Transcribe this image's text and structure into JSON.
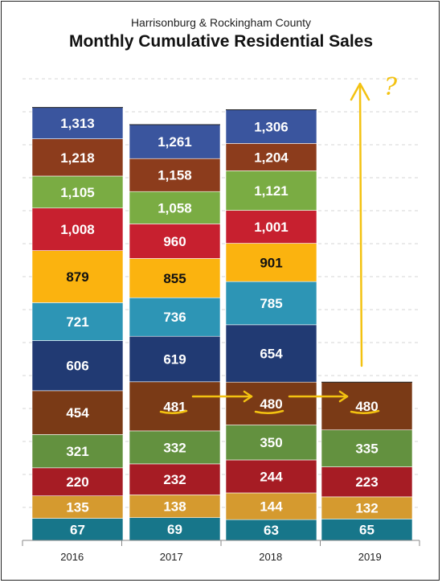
{
  "chart_data": {
    "type": "bar",
    "stacked": true,
    "subtitle": "Harrisonburg & Rockingham County",
    "title": "Monthly Cumulative Residential Sales",
    "categories": [
      "2016",
      "2017",
      "2018",
      "2019"
    ],
    "values": [
      [
        67,
        135,
        220,
        321,
        454,
        606,
        721,
        879,
        1008,
        1105,
        1218,
        1313
      ],
      [
        69,
        138,
        232,
        332,
        481,
        619,
        736,
        855,
        960,
        1058,
        1158,
        1261
      ],
      [
        63,
        144,
        244,
        350,
        480,
        654,
        785,
        901,
        1001,
        1121,
        1204,
        1306
      ],
      [
        65,
        132,
        223,
        335,
        480
      ]
    ],
    "labels": [
      [
        "67",
        "135",
        "220",
        "321",
        "454",
        "606",
        "721",
        "879",
        "1,008",
        "1,105",
        "1,218",
        "1,313"
      ],
      [
        "69",
        "138",
        "232",
        "332",
        "481",
        "619",
        "736",
        "855",
        "960",
        "1,058",
        "1,158",
        "1,261"
      ],
      [
        "63",
        "144",
        "244",
        "350",
        "480",
        "654",
        "785",
        "901",
        "1,001",
        "1,121",
        "1,204",
        "1,306"
      ],
      [
        "65",
        "132",
        "223",
        "335",
        "480"
      ]
    ],
    "ylim": [
      0,
      1400
    ],
    "grid": true,
    "legend": "none",
    "segment_colors": [
      "#17768a",
      "#d59a2f",
      "#a61c24",
      "#63913f",
      "#7a3a16",
      "#213a73",
      "#2d95b5",
      "#fbb30f",
      "#c7202f",
      "#7aac43",
      "#8c3c1c",
      "#3a559e"
    ],
    "annotations": {
      "question_mark": "?",
      "color": "#f3c211"
    }
  }
}
